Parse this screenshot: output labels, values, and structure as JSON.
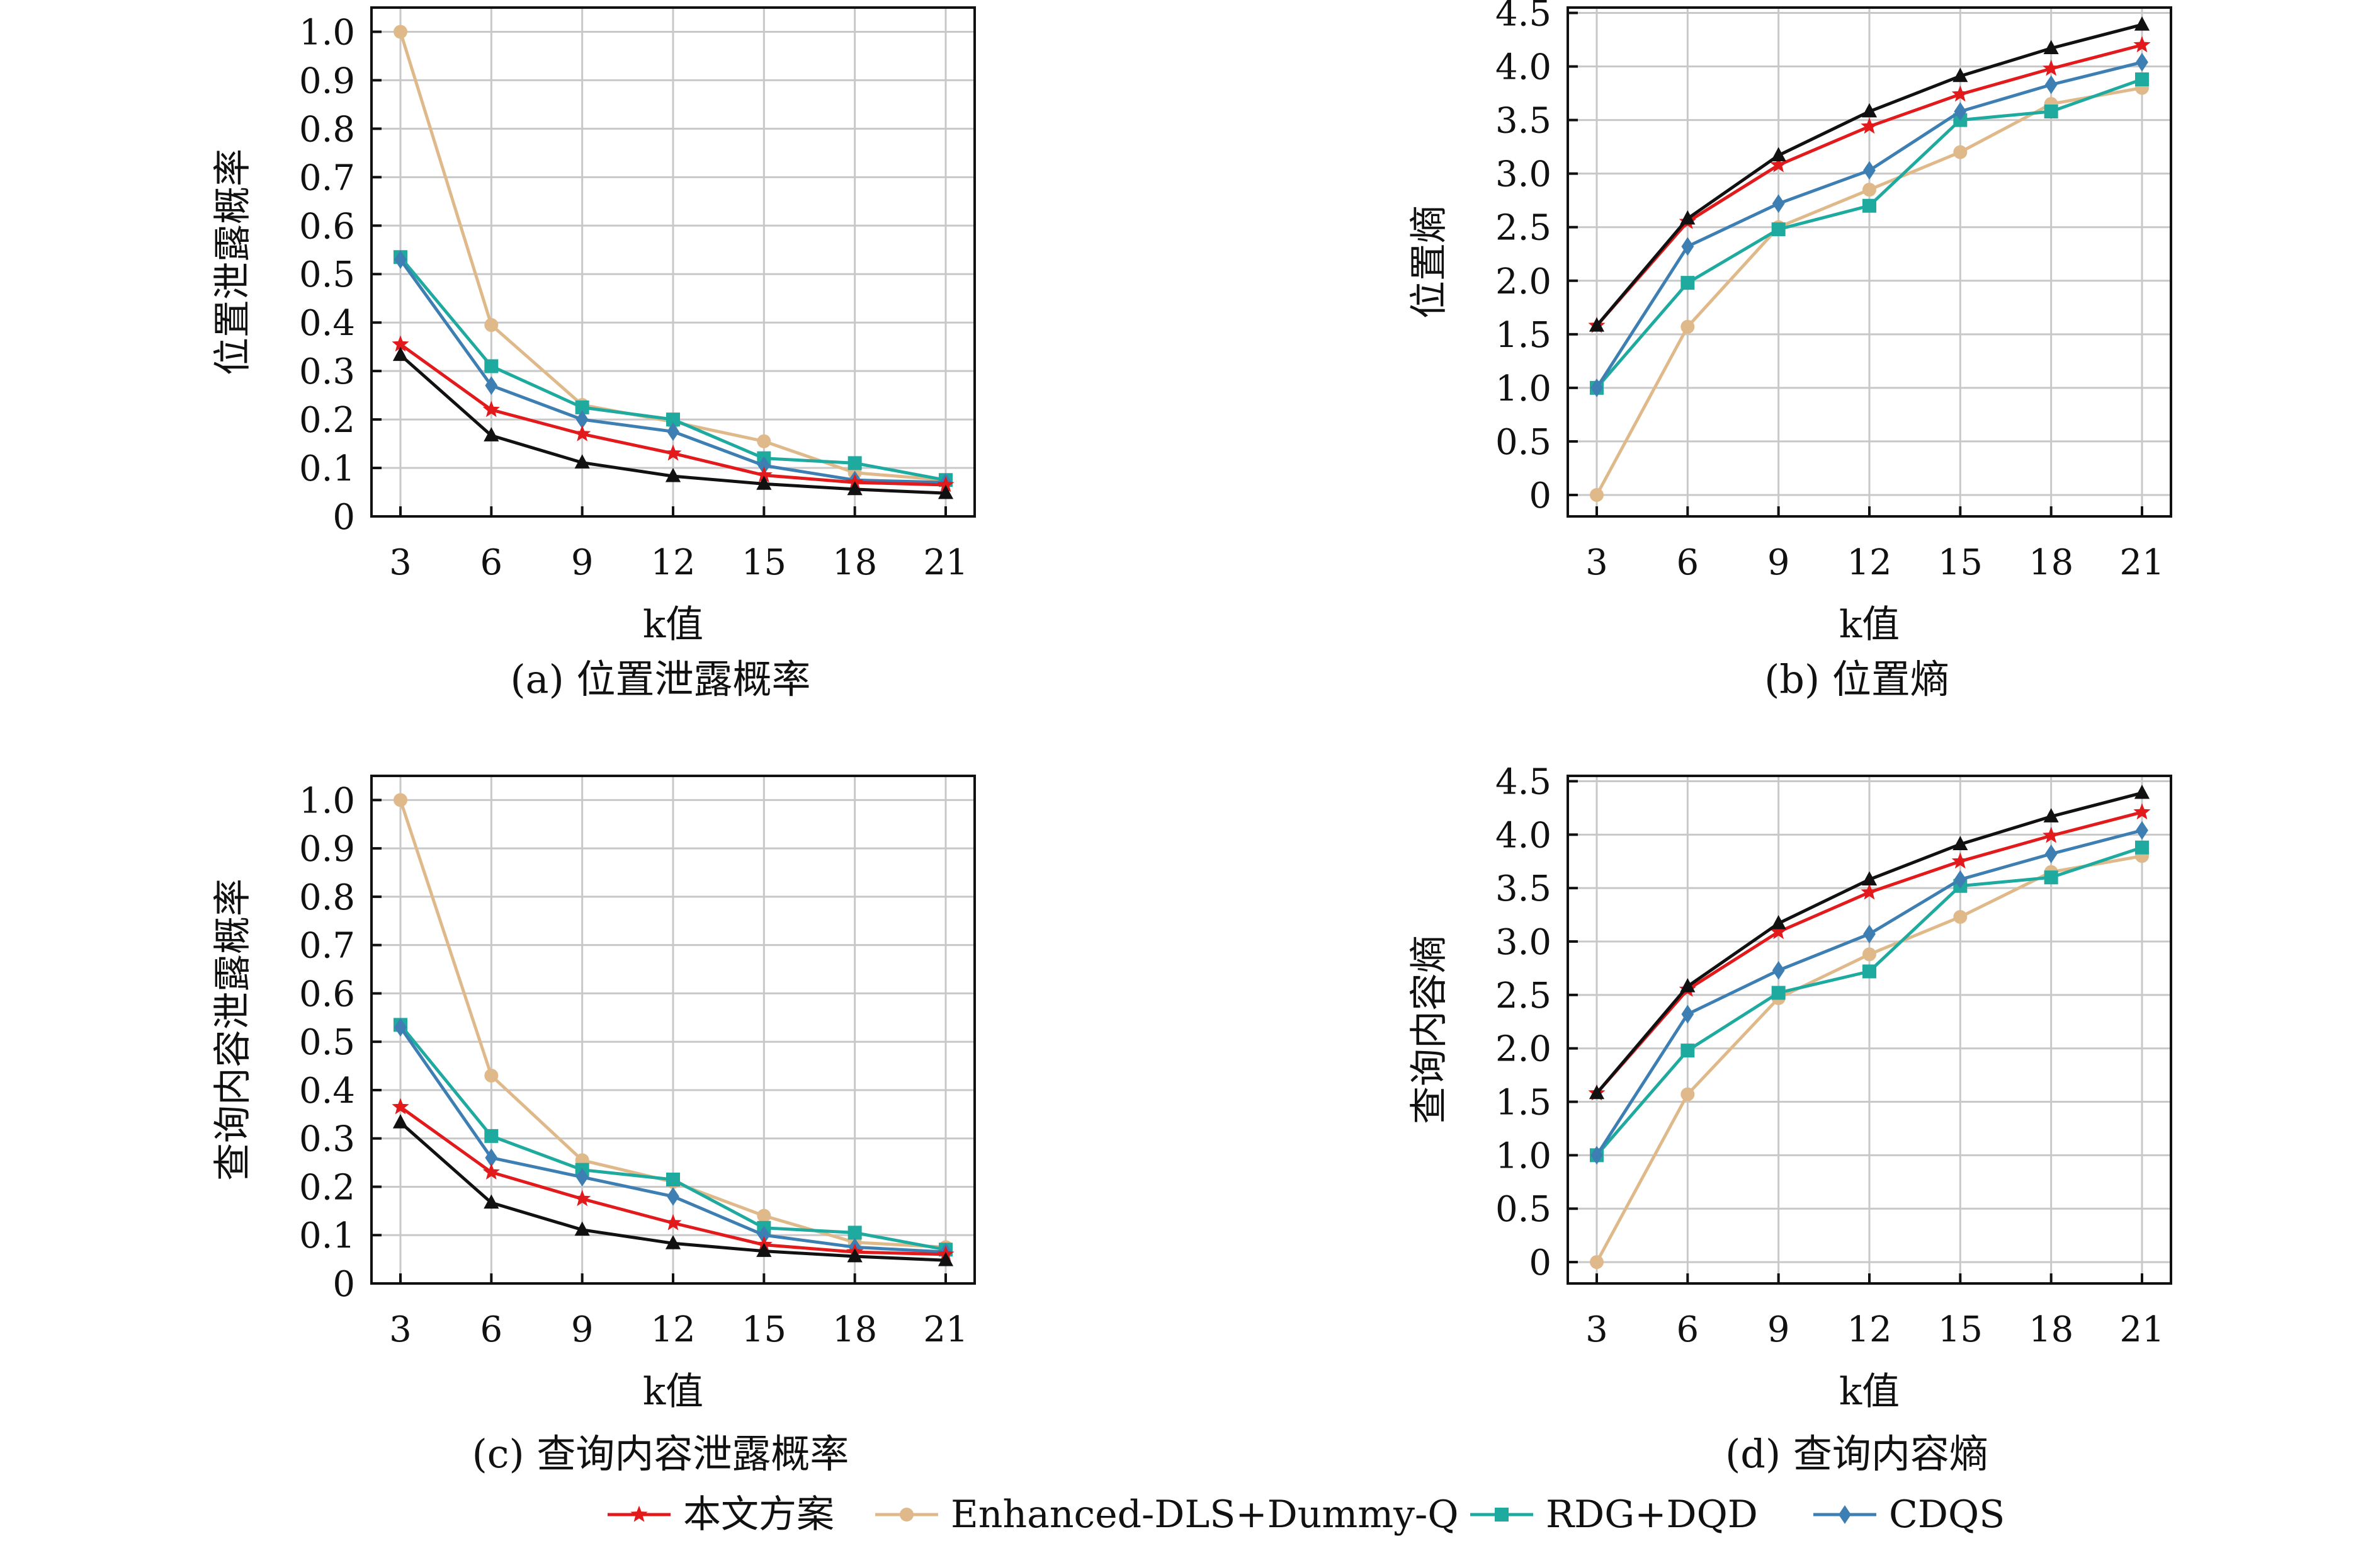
{
  "chart_data": [
    {
      "type": "line",
      "caption": "(a) 位置泄露概率",
      "xlabel": "k值",
      "ylabel": "位置泄露概率",
      "x": [
        3,
        6,
        9,
        12,
        15,
        18,
        21
      ],
      "xticks": [
        "3",
        "6",
        "9",
        "12",
        "15",
        "18",
        "21"
      ],
      "ylim": [
        0,
        1.05
      ],
      "yticks": [
        0,
        0.1,
        0.2,
        0.3,
        0.4,
        0.5,
        0.6,
        0.7,
        0.8,
        0.9,
        1.0
      ],
      "ytick_labels": [
        "0",
        "0.1",
        "0.2",
        "0.3",
        "0.4",
        "0.5",
        "0.6",
        "0.7",
        "0.8",
        "0.9",
        "1.0"
      ],
      "grid": true,
      "series": [
        {
          "name": "本文方案",
          "values": [
            0.355,
            0.22,
            0.17,
            0.13,
            0.085,
            0.07,
            0.065
          ]
        },
        {
          "name": "Enhanced-DLS+Dummy-Q",
          "values": [
            1.0,
            0.395,
            0.23,
            0.195,
            0.155,
            0.09,
            0.075
          ]
        },
        {
          "name": "RDG+DQD",
          "values": [
            0.535,
            0.31,
            0.225,
            0.2,
            0.12,
            0.11,
            0.075
          ]
        },
        {
          "name": "CDQS",
          "values": [
            0.53,
            0.27,
            0.2,
            0.175,
            0.105,
            0.075,
            0.07
          ]
        },
        {
          "name": "",
          "values": [
            0.333,
            0.167,
            0.111,
            0.083,
            0.067,
            0.056,
            0.048
          ]
        }
      ]
    },
    {
      "type": "line",
      "caption": "(b) 位置熵",
      "xlabel": "k值",
      "ylabel": "位置熵",
      "x": [
        3,
        6,
        9,
        12,
        15,
        18,
        21
      ],
      "xticks": [
        "3",
        "6",
        "9",
        "12",
        "15",
        "18",
        "21"
      ],
      "ylim": [
        -0.2,
        4.55
      ],
      "yticks": [
        0,
        0.5,
        1.0,
        1.5,
        2.0,
        2.5,
        3.0,
        3.5,
        4.0,
        4.5
      ],
      "ytick_labels": [
        "0",
        "0.5",
        "1.0",
        "1.5",
        "2.0",
        "2.5",
        "3.0",
        "3.5",
        "4.0",
        "4.5"
      ],
      "grid": true,
      "series": [
        {
          "name": "本文方案",
          "values": [
            1.58,
            2.55,
            3.08,
            3.44,
            3.74,
            3.98,
            4.2
          ]
        },
        {
          "name": "Enhanced-DLS+Dummy-Q",
          "values": [
            0.0,
            1.57,
            2.5,
            2.85,
            3.2,
            3.65,
            3.8
          ]
        },
        {
          "name": "RDG+DQD",
          "values": [
            1.0,
            1.98,
            2.48,
            2.7,
            3.5,
            3.58,
            3.88
          ]
        },
        {
          "name": "CDQS",
          "values": [
            1.0,
            2.32,
            2.72,
            3.03,
            3.58,
            3.83,
            4.04
          ]
        },
        {
          "name": "",
          "values": [
            1.58,
            2.58,
            3.17,
            3.58,
            3.91,
            4.17,
            4.39
          ]
        }
      ]
    },
    {
      "type": "line",
      "caption": "(c) 查询内容泄露概率",
      "xlabel": "k值",
      "ylabel": "查询内容泄露概率",
      "x": [
        3,
        6,
        9,
        12,
        15,
        18,
        21
      ],
      "xticks": [
        "3",
        "6",
        "9",
        "12",
        "15",
        "18",
        "21"
      ],
      "ylim": [
        0,
        1.05
      ],
      "yticks": [
        0,
        0.1,
        0.2,
        0.3,
        0.4,
        0.5,
        0.6,
        0.7,
        0.8,
        0.9,
        1.0
      ],
      "ytick_labels": [
        "0",
        "0.1",
        "0.2",
        "0.3",
        "0.4",
        "0.5",
        "0.6",
        "0.7",
        "0.8",
        "0.9",
        "1.0"
      ],
      "grid": true,
      "series": [
        {
          "name": "本文方案",
          "values": [
            0.365,
            0.23,
            0.175,
            0.125,
            0.08,
            0.065,
            0.06
          ]
        },
        {
          "name": "Enhanced-DLS+Dummy-Q",
          "values": [
            1.0,
            0.43,
            0.255,
            0.21,
            0.14,
            0.085,
            0.075
          ]
        },
        {
          "name": "RDG+DQD",
          "values": [
            0.535,
            0.305,
            0.235,
            0.215,
            0.115,
            0.105,
            0.07
          ]
        },
        {
          "name": "CDQS",
          "values": [
            0.53,
            0.26,
            0.22,
            0.18,
            0.1,
            0.075,
            0.065
          ]
        },
        {
          "name": "",
          "values": [
            0.333,
            0.167,
            0.111,
            0.083,
            0.067,
            0.056,
            0.048
          ]
        }
      ]
    },
    {
      "type": "line",
      "caption": "(d) 查询内容熵",
      "xlabel": "k值",
      "ylabel": "查询内容熵",
      "x": [
        3,
        6,
        9,
        12,
        15,
        18,
        21
      ],
      "xticks": [
        "3",
        "6",
        "9",
        "12",
        "15",
        "18",
        "21"
      ],
      "ylim": [
        -0.2,
        4.55
      ],
      "yticks": [
        0,
        0.5,
        1.0,
        1.5,
        2.0,
        2.5,
        3.0,
        3.5,
        4.0,
        4.5
      ],
      "ytick_labels": [
        "0",
        "0.5",
        "1.0",
        "1.5",
        "2.0",
        "2.5",
        "3.0",
        "3.5",
        "4.0",
        "4.5"
      ],
      "grid": true,
      "series": [
        {
          "name": "本文方案",
          "values": [
            1.58,
            2.55,
            3.09,
            3.46,
            3.75,
            3.99,
            4.21
          ]
        },
        {
          "name": "Enhanced-DLS+Dummy-Q",
          "values": [
            0.0,
            1.57,
            2.47,
            2.88,
            3.23,
            3.65,
            3.8
          ]
        },
        {
          "name": "RDG+DQD",
          "values": [
            1.0,
            1.98,
            2.52,
            2.72,
            3.52,
            3.6,
            3.88
          ]
        },
        {
          "name": "CDQS",
          "values": [
            1.0,
            2.32,
            2.73,
            3.07,
            3.58,
            3.82,
            4.04
          ]
        },
        {
          "name": "",
          "values": [
            1.58,
            2.58,
            3.17,
            3.58,
            3.91,
            4.17,
            4.39
          ]
        }
      ]
    }
  ],
  "series_styles": [
    {
      "color": "#e31a1c",
      "marker": "star"
    },
    {
      "color": "#e0b98a",
      "marker": "circle"
    },
    {
      "color": "#1faaa0",
      "marker": "square"
    },
    {
      "color": "#3d7fb3",
      "marker": "diamond"
    },
    {
      "color": "#111111",
      "marker": "triangle"
    }
  ],
  "legend": {
    "placement": "bottom-center",
    "items": [
      "本文方案",
      "Enhanced-DLS+Dummy-Q",
      "RDG+DQD",
      "CDQS"
    ]
  }
}
